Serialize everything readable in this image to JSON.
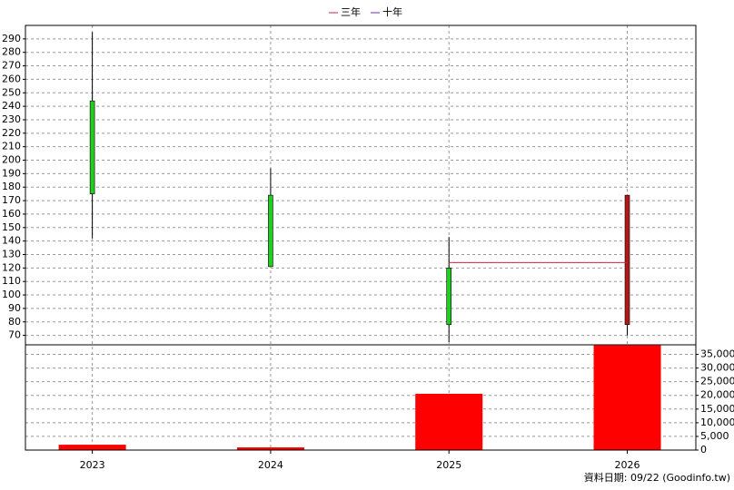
{
  "chart_data": {
    "type": "candlestick",
    "categories": [
      "2023",
      "2024",
      "2025",
      "2026"
    ],
    "open": [
      244,
      174,
      120,
      78
    ],
    "high": [
      295,
      194,
      143,
      174
    ],
    "low": [
      142,
      121,
      65,
      70
    ],
    "close": [
      175,
      121,
      78,
      174
    ],
    "up_color": "#b01818",
    "down_color": "#22cc22",
    "ylim": [
      63,
      300
    ],
    "yticks": [
      70,
      80,
      90,
      100,
      110,
      120,
      130,
      140,
      150,
      160,
      170,
      180,
      190,
      200,
      210,
      220,
      230,
      240,
      250,
      260,
      270,
      280,
      290
    ],
    "series": [
      {
        "name": "三年",
        "color": "#cc2244",
        "values": [
          null,
          null,
          124,
          124
        ]
      },
      {
        "name": "十年",
        "color": "#6a2cc8",
        "values": [
          null,
          null,
          null,
          null
        ]
      }
    ],
    "volume": {
      "color": "#ff0000",
      "values": [
        1960,
        980,
        20600,
        38300
      ]
    },
    "y2lim": [
      0,
      38500
    ],
    "y2ticks": [
      0,
      {
        "value": 5000,
        "label": "5,000"
      },
      {
        "value": 10000,
        "label": "10,000"
      },
      {
        "value": 15000,
        "label": "15,000"
      },
      {
        "value": 20000,
        "label": "20,000"
      },
      {
        "value": 25000,
        "label": "25,000"
      },
      {
        "value": 30000,
        "label": "30,000"
      },
      {
        "value": 35000,
        "label": "35,000"
      }
    ],
    "grid": true,
    "footer": "資料日期: 09/22  (Goodinfo.tw)"
  }
}
